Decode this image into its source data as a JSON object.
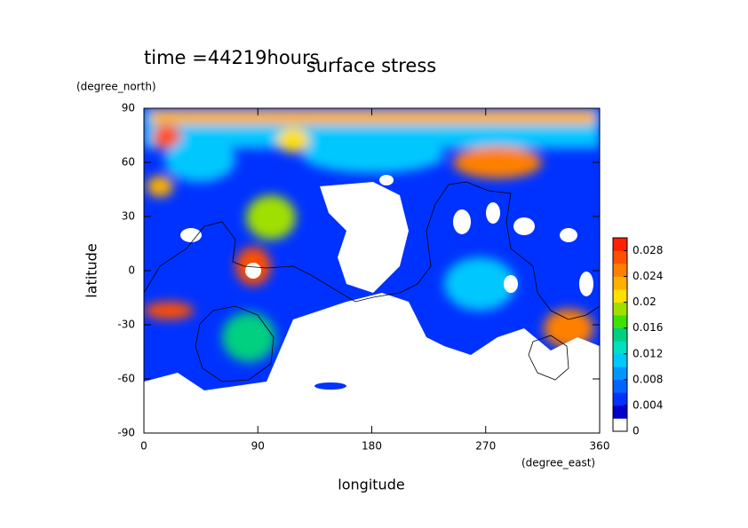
{
  "chart_data": {
    "type": "contour",
    "title": "surface stress",
    "subtitle": "time =44219hours",
    "x_label": "longitude",
    "x_unit": "(degree_east)",
    "y_label": "latitude",
    "y_unit": "(degree_north)",
    "xlim": [
      0,
      360
    ],
    "xticks": [
      0,
      90,
      180,
      270,
      360
    ],
    "ylim": [
      -90,
      90
    ],
    "yticks": [
      -90,
      -60,
      -30,
      0,
      30,
      60,
      90
    ],
    "colorbar": {
      "lim": [
        0,
        0.03
      ],
      "ticks": [
        0,
        0.004,
        0.008,
        0.012,
        0.016,
        0.02,
        0.024,
        0.028
      ],
      "colors": [
        "#ffffff",
        "#0000c8",
        "#0032ff",
        "#0064ff",
        "#0096ff",
        "#00c8ff",
        "#00e0c0",
        "#00d080",
        "#40e000",
        "#a0e000",
        "#ffe000",
        "#ffb000",
        "#ff8000",
        "#ff5000",
        "#ff2000"
      ]
    }
  }
}
